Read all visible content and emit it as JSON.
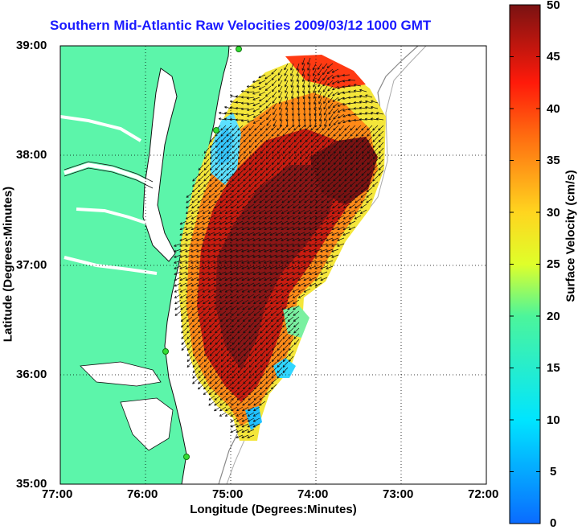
{
  "title": "Southern Mid-Atlantic Raw Velocities 2009/03/12 1000 GMT",
  "axes": {
    "xlabel": "Longitude (Degrees:Minutes)",
    "ylabel": "Latitude (Degrees:Minutes)",
    "xticks": [
      "77:00",
      "76:00",
      "75:00",
      "74:00",
      "73:00",
      "72:00"
    ],
    "yticks": [
      "39:00",
      "38:00",
      "37:00",
      "36:00",
      "35:00"
    ],
    "grid": "dotted"
  },
  "colorbar": {
    "label": "Surface Velocity (cm/s)",
    "ticks": [
      "50",
      "45",
      "40",
      "35",
      "30",
      "25",
      "20",
      "15",
      "10",
      "5",
      "0"
    ],
    "range": [
      0,
      50
    ],
    "colormap": "jet"
  },
  "colors": {
    "land": "#5cf5aa",
    "title": "#1a1aff",
    "station": "#33dd33"
  }
}
